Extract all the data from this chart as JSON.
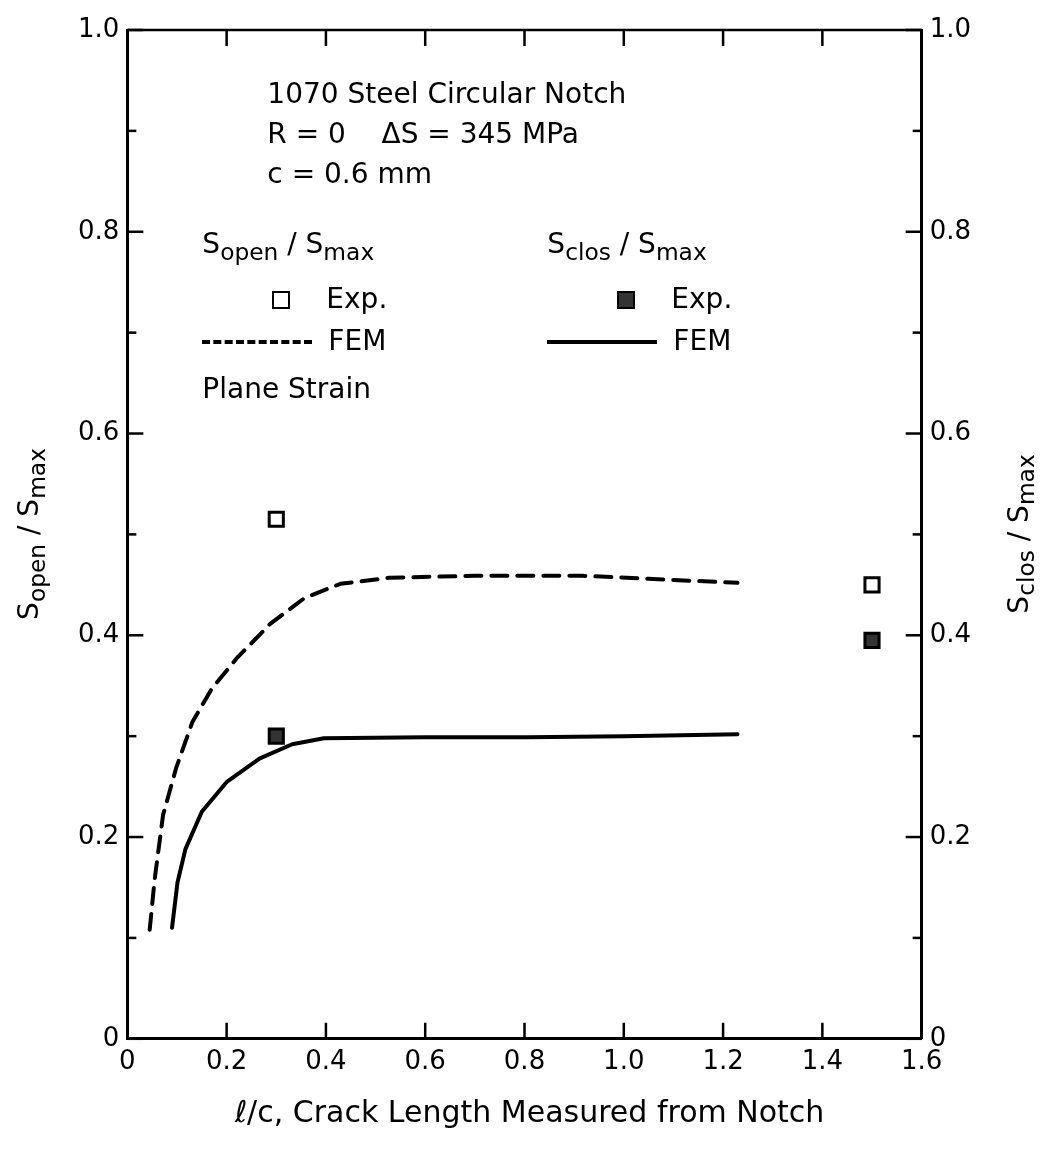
{
  "chart_data": {
    "type": "line",
    "xlabel": "ℓ/c, Crack Length Measured from Notch",
    "ylabel": "S$_{open}$ / S$_{max}$",
    "y2label": "S$_{clos}$ / S$_{max}$",
    "annotations": [
      "1070 Steel Circular Notch",
      "R = 0    ΔS = 345 MPa",
      "c = 0.6 mm",
      "S$_{open}$ / S$_{max}$",
      "S$_{clos}$ / S$_{max}$",
      "Plane Strain"
    ],
    "series": [
      {
        "name": "Exp.",
        "type": "scatter",
        "marker": "square",
        "color": "#000000",
        "x": [
          0.3,
          1.5
        ],
        "values": [
          0.515,
          0.45
        ]
      },
      {
        "name": "FEM",
        "marker": "none",
        "line_style": "dashed",
        "color": "#000000",
        "x": [
          0.045,
          0.055,
          0.072,
          0.098,
          0.131,
          0.17,
          0.22,
          0.287,
          0.357,
          0.429,
          0.527,
          0.7,
          0.917,
          1.05,
          1.229
        ],
        "values": [
          0.108,
          0.158,
          0.222,
          0.268,
          0.314,
          0.347,
          0.377,
          0.411,
          0.437,
          0.451,
          0.457,
          0.459,
          0.459,
          0.456,
          0.452
        ]
      },
      {
        "name": "Exp.",
        "type": "scatter",
        "marker": "square",
        "axis": "y2",
        "color": "#333333",
        "x": [
          0.3,
          1.5
        ],
        "values": [
          0.3,
          0.395
        ]
      },
      {
        "name": "FEM",
        "marker": "none",
        "line_style": "solid",
        "axis": "y2",
        "color": "#000000",
        "x": [
          0.09,
          0.101,
          0.117,
          0.15,
          0.201,
          0.267,
          0.332,
          0.396,
          0.6,
          0.806,
          1.0,
          1.229
        ],
        "values": [
          0.11,
          0.155,
          0.188,
          0.225,
          0.255,
          0.278,
          0.292,
          0.298,
          0.299,
          0.299,
          0.3,
          0.302
        ]
      }
    ],
    "xlim": [
      0,
      1.6
    ],
    "xticks": [
      0,
      0.2,
      0.4,
      0.6,
      0.8,
      {
        "value": 1,
        "label": "1.0"
      },
      1.2,
      1.4,
      1.6
    ],
    "ylim": [
      0,
      1
    ],
    "yticks": [
      0,
      {
        "value": 0.1,
        "label": null
      },
      0.2,
      {
        "value": 0.3,
        "label": null
      },
      0.4,
      {
        "value": 0.5,
        "label": null
      },
      0.6,
      {
        "value": 0.7,
        "label": null
      },
      0.8,
      {
        "value": 0.9,
        "label": null
      },
      {
        "value": 1,
        "label": "1.0"
      }
    ],
    "y2lim": [
      0,
      1
    ],
    "y2ticks": [
      0,
      {
        "value": 0.1,
        "label": null
      },
      0.2,
      {
        "value": 0.3,
        "label": null
      },
      0.4,
      {
        "value": 0.5,
        "label": null
      },
      0.6,
      {
        "value": 0.7,
        "label": null
      },
      0.8,
      {
        "value": 0.9,
        "label": null
      },
      {
        "value": 1,
        "label": "1.0"
      }
    ],
    "grid": false,
    "legend": "top"
  }
}
